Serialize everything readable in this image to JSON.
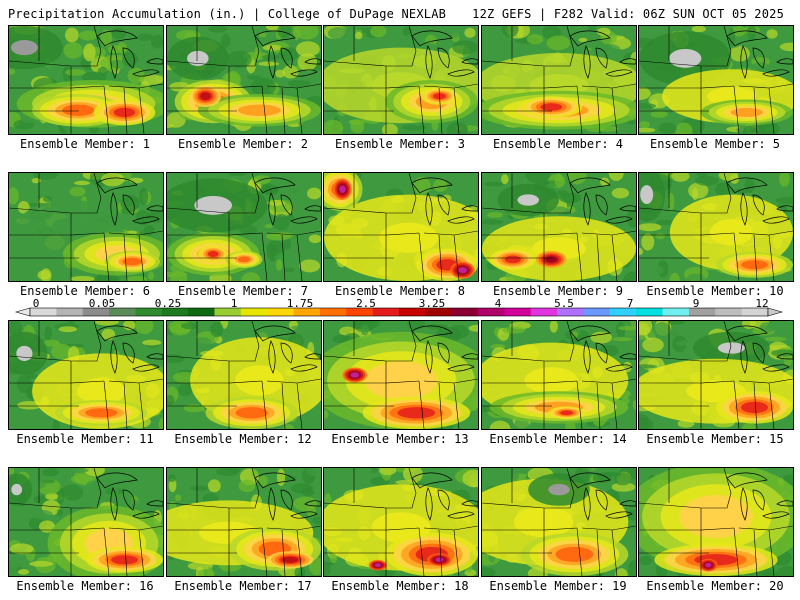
{
  "header": {
    "title": "Precipitation Accumulation (in.) | College of DuPage NEXLAB",
    "run_info": "12Z GEFS | F282 Valid: 06Z SUN OCT 05 2025"
  },
  "colorbar": {
    "labels": [
      "0",
      "0.05",
      "0.25",
      "1",
      "1.75",
      "2.5",
      "3.25",
      "4",
      "5.5",
      "7",
      "9",
      "12"
    ],
    "colors": [
      "#d8d8d8",
      "#b4b4b4",
      "#8c8c8c",
      "#5a8c5a",
      "#2e8b2e",
      "#1e7a1e",
      "#0f6a0f",
      "#9acd32",
      "#e6e600",
      "#ffd700",
      "#ffa500",
      "#ff7000",
      "#ff4500",
      "#e61c1c",
      "#c80000",
      "#a00000",
      "#8b0030",
      "#b0006a",
      "#d4009c",
      "#e033e0",
      "#b070ff",
      "#6a9aff",
      "#30d0ff",
      "#00e0e0",
      "#70f0f0",
      "#a0a0a0",
      "#bcbcbc",
      "#d4d4d4"
    ]
  },
  "members": [
    {
      "label": "Ensemble Member: 1"
    },
    {
      "label": "Ensemble Member: 2"
    },
    {
      "label": "Ensemble Member: 3"
    },
    {
      "label": "Ensemble Member: 4"
    },
    {
      "label": "Ensemble Member: 5"
    },
    {
      "label": "Ensemble Member: 6"
    },
    {
      "label": "Ensemble Member: 7"
    },
    {
      "label": "Ensemble Member: 8"
    },
    {
      "label": "Ensemble Member: 9"
    },
    {
      "label": "Ensemble Member: 10"
    },
    {
      "label": "Ensemble Member: 11"
    },
    {
      "label": "Ensemble Member: 12"
    },
    {
      "label": "Ensemble Member: 13"
    },
    {
      "label": "Ensemble Member: 14"
    },
    {
      "label": "Ensemble Member: 15"
    },
    {
      "label": "Ensemble Member: 16"
    },
    {
      "label": "Ensemble Member: 17"
    },
    {
      "label": "Ensemble Member: 18"
    },
    {
      "label": "Ensemble Member: 19"
    },
    {
      "label": "Ensemble Member: 20"
    }
  ]
}
